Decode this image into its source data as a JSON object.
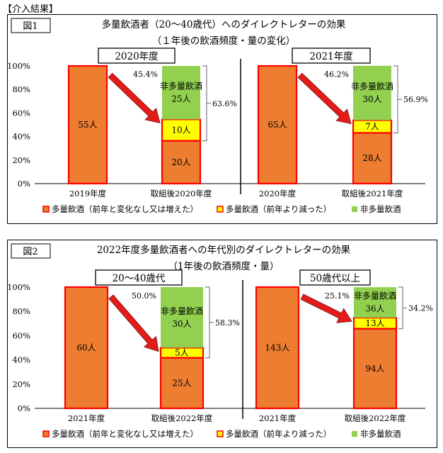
{
  "header": "【介入結果】",
  "legend_colors": {
    "heavy_same_or_more": "#ED7D31",
    "heavy_reduced": "#FFFF00",
    "non_heavy": "#92D050",
    "outline": "#FF0000",
    "arrow": "#E41B17"
  },
  "chart_data": [
    {
      "type": "bar",
      "stacked": true,
      "figure_label": "図1",
      "title": "多量飲酒者（20～40歳代）へのダイレクトレターの効果",
      "subtitle": "（１年後の飲酒頻度・量の変化）",
      "ylim": [
        0,
        100
      ],
      "y_ticks": [
        "0%",
        "20%",
        "40%",
        "60%",
        "80%",
        "100%"
      ],
      "grid": false,
      "legend_position": "bottom",
      "legend": [
        "多量飲酒（前年と変化なし又は増えた）",
        "多量飲酒（前年より減った）",
        "非多量飲酒"
      ],
      "groups": [
        {
          "label": "2020年度",
          "bars": [
            {
              "category": "2019年度",
              "segments": [
                {
                  "series": "heavy_same",
                  "value": 100,
                  "label": "55人"
                }
              ]
            },
            {
              "category": "取組後2020年度",
              "segments": [
                {
                  "series": "heavy_same",
                  "value": 36.4,
                  "label": "20人"
                },
                {
                  "series": "heavy_reduced",
                  "value": 18.2,
                  "label": "10人"
                },
                {
                  "series": "non_heavy",
                  "value": 45.4,
                  "label": "非多量飲酒\n25人"
                }
              ]
            }
          ],
          "arrow_label": "45.4%",
          "bracket_label": "63.6%"
        },
        {
          "label": "2021年度",
          "bars": [
            {
              "category": "2020年度",
              "segments": [
                {
                  "series": "heavy_same",
                  "value": 100,
                  "label": "65人"
                }
              ]
            },
            {
              "category": "取組後2021年度",
              "segments": [
                {
                  "series": "heavy_same",
                  "value": 43.1,
                  "label": "28人"
                },
                {
                  "series": "heavy_reduced",
                  "value": 10.8,
                  "label": "7人"
                },
                {
                  "series": "non_heavy",
                  "value": 46.2,
                  "label": "非多量飲酒\n30人"
                }
              ]
            }
          ],
          "arrow_label": "46.2%",
          "bracket_label": "56.9%"
        }
      ]
    },
    {
      "type": "bar",
      "stacked": true,
      "figure_label": "図2",
      "title": "2022年度多量飲酒者への年代別のダイレクトレターの効果",
      "subtitle": "（1年後の飲酒頻度・量）",
      "ylim": [
        0,
        100
      ],
      "y_ticks": [
        "0%",
        "20%",
        "40%",
        "60%",
        "80%",
        "100%"
      ],
      "grid": false,
      "legend_position": "bottom",
      "legend": [
        "多量飲酒（前年と変化なし又は増えた）",
        "多量飲酒（前年より減った）",
        "非多量飲酒"
      ],
      "groups": [
        {
          "label": "20～40歳代",
          "bars": [
            {
              "category": "2021年度",
              "segments": [
                {
                  "series": "heavy_same",
                  "value": 100,
                  "label": "60人"
                }
              ]
            },
            {
              "category": "取組後2022年度",
              "segments": [
                {
                  "series": "heavy_same",
                  "value": 41.7,
                  "label": "25人"
                },
                {
                  "series": "heavy_reduced",
                  "value": 8.3,
                  "label": "5人"
                },
                {
                  "series": "non_heavy",
                  "value": 50.0,
                  "label": "非多量飲酒\n30人"
                }
              ]
            }
          ],
          "arrow_label": "50.0%",
          "bracket_label": "58.3%"
        },
        {
          "label": "50歳代以上",
          "bars": [
            {
              "category": "2021年度",
              "segments": [
                {
                  "series": "heavy_same",
                  "value": 100,
                  "label": "143人"
                }
              ]
            },
            {
              "category": "取組後2022年度",
              "segments": [
                {
                  "series": "heavy_same",
                  "value": 65.7,
                  "label": "94人"
                },
                {
                  "series": "heavy_reduced",
                  "value": 9.1,
                  "label": "13人"
                },
                {
                  "series": "non_heavy",
                  "value": 25.1,
                  "label": "非多量飲酒\n36人"
                }
              ]
            }
          ],
          "arrow_label": "25.1%",
          "bracket_label": "34.2%"
        }
      ]
    }
  ]
}
